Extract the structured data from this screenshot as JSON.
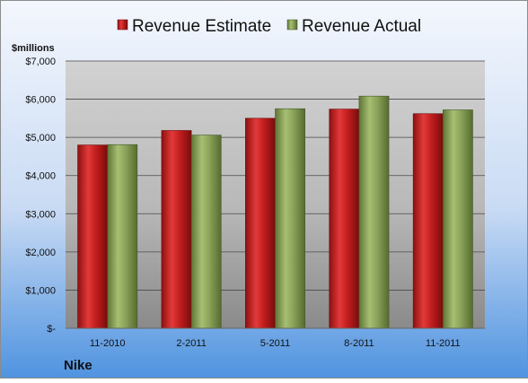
{
  "chart_data": {
    "type": "bar",
    "categories": [
      "11-2010",
      "2-2011",
      "5-2011",
      "8-2011",
      "11-2011"
    ],
    "series": [
      {
        "name": "Revenue Estimate",
        "values": [
          4800,
          5180,
          5500,
          5740,
          5620
        ],
        "color": "#c41e1e"
      },
      {
        "name": "Revenue Actual",
        "values": [
          4810,
          5060,
          5750,
          6080,
          5720
        ],
        "color": "#8ba35a"
      }
    ],
    "ylabel": "$millions",
    "ylim": [
      0,
      7000
    ],
    "yticks": [
      0,
      1000,
      2000,
      3000,
      4000,
      5000,
      6000,
      7000
    ],
    "ytick_labels": [
      "$-",
      "$1,000",
      "$2,000",
      "$3,000",
      "$4,000",
      "$5,000",
      "$6,000",
      "$7,000"
    ],
    "legend_position": "top",
    "grid": true,
    "footer_label": "Nike"
  }
}
